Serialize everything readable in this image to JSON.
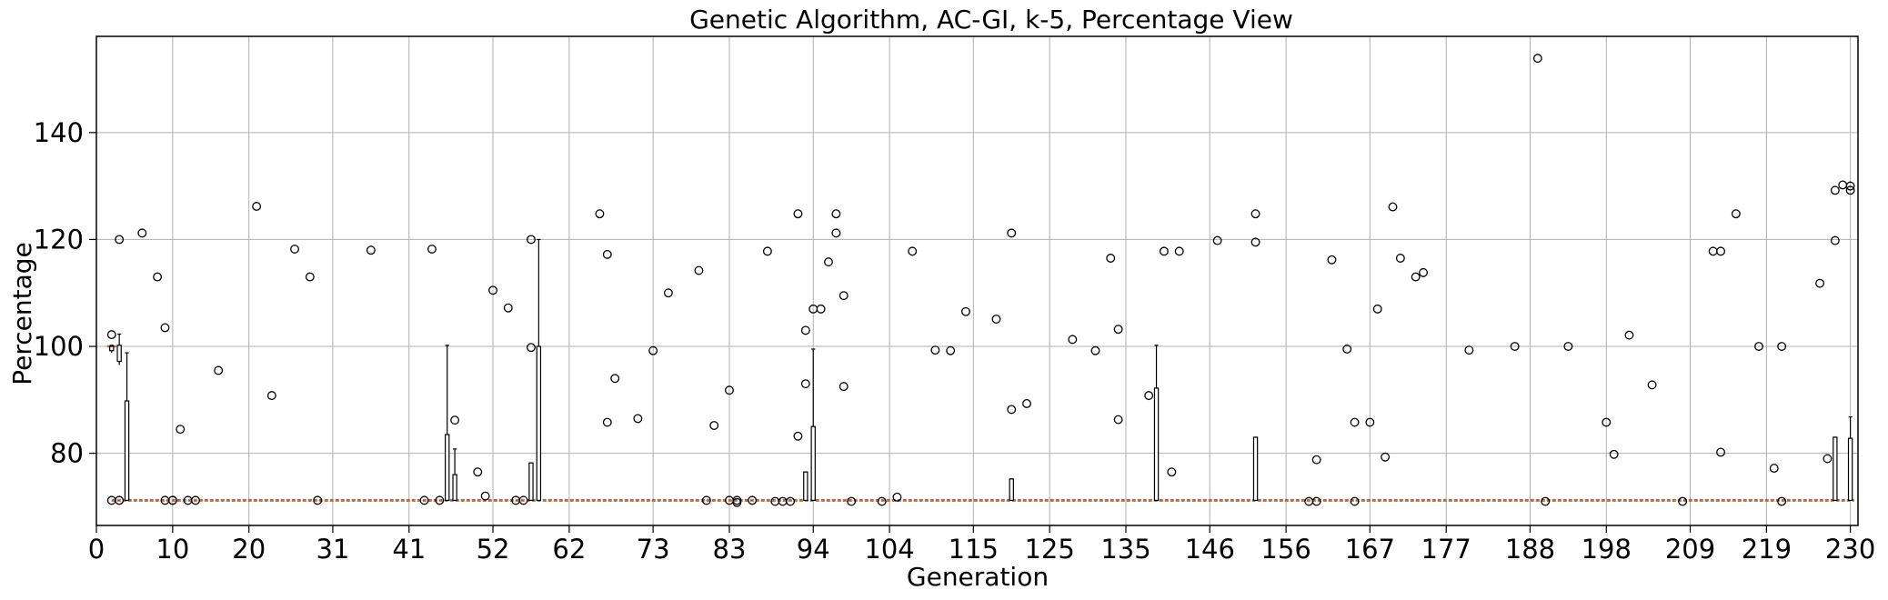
{
  "chart_data": {
    "type": "box",
    "title": "Genetic Algorithm, AC-GI, k-5, Percentage View",
    "xlabel": "Generation",
    "ylabel": "Percentage",
    "xlim": [
      0,
      231
    ],
    "ylim": [
      66.5,
      158
    ],
    "x_ticks": [
      0,
      10,
      20,
      31,
      41,
      52,
      62,
      73,
      83,
      94,
      104,
      115,
      125,
      135,
      146,
      156,
      167,
      177,
      188,
      198,
      209,
      219,
      230
    ],
    "y_ticks": [
      80,
      100,
      120,
      140
    ],
    "grid": true,
    "median_color": "#c8662a",
    "median_level": 71.2,
    "boxes": [
      {
        "x": 2,
        "q1": 99.2,
        "q3": 100,
        "whisker_low": 98.8,
        "whisker_high": 100.2
      },
      {
        "x": 3,
        "q1": 97.2,
        "q3": 100.2,
        "whisker_low": 96.5,
        "whisker_high": 102.3
      },
      {
        "x": 4,
        "q1": 71.2,
        "q3": 89.8,
        "whisker_low": 71.2,
        "whisker_high": 98.8
      },
      {
        "x": 46,
        "q1": 71.2,
        "q3": 83.5,
        "whisker_low": 71.2,
        "whisker_high": 100.2
      },
      {
        "x": 47,
        "q1": 71.2,
        "q3": 76,
        "whisker_low": 71.2,
        "whisker_high": 80.8
      },
      {
        "x": 57,
        "q1": 71.2,
        "q3": 78.2,
        "whisker_low": 71.2,
        "whisker_high": 78.2
      },
      {
        "x": 58,
        "q1": 71.2,
        "q3": 100,
        "whisker_low": 71.2,
        "whisker_high": 120
      },
      {
        "x": 93,
        "q1": 71.2,
        "q3": 76.5,
        "whisker_low": 71.2,
        "whisker_high": 76.5
      },
      {
        "x": 94,
        "q1": 71.2,
        "q3": 85,
        "whisker_low": 71.2,
        "whisker_high": 99.5
      },
      {
        "x": 120,
        "q1": 71.2,
        "q3": 75.2,
        "whisker_low": 71.2,
        "whisker_high": 75.2
      },
      {
        "x": 139,
        "q1": 71.2,
        "q3": 92.2,
        "whisker_low": 71.2,
        "whisker_high": 100.2
      },
      {
        "x": 152,
        "q1": 71.2,
        "q3": 83,
        "whisker_low": 71.2,
        "whisker_high": 83
      },
      {
        "x": 228,
        "q1": 71.2,
        "q3": 83,
        "whisker_low": 71.2,
        "whisker_high": 83
      },
      {
        "x": 230,
        "q1": 71.2,
        "q3": 82.8,
        "whisker_low": 71.2,
        "whisker_high": 86.8
      }
    ],
    "outliers": [
      [
        2,
        102.2
      ],
      [
        2,
        71.2
      ],
      [
        3,
        120
      ],
      [
        3,
        71.2
      ],
      [
        6,
        121.2
      ],
      [
        8,
        113
      ],
      [
        9,
        103.5
      ],
      [
        9,
        71.2
      ],
      [
        10,
        71.2
      ],
      [
        10,
        71.2
      ],
      [
        11,
        84.5
      ],
      [
        12,
        71.2
      ],
      [
        13,
        71.2
      ],
      [
        16,
        95.5
      ],
      [
        21,
        126.2
      ],
      [
        23,
        90.8
      ],
      [
        26,
        118.2
      ],
      [
        28,
        113
      ],
      [
        29,
        71.2
      ],
      [
        36,
        118
      ],
      [
        43,
        71.2
      ],
      [
        44,
        118.2
      ],
      [
        45,
        71.2
      ],
      [
        47,
        86.2
      ],
      [
        50,
        76.5
      ],
      [
        51,
        72
      ],
      [
        52,
        110.5
      ],
      [
        54,
        107.2
      ],
      [
        55,
        71.2
      ],
      [
        56,
        71.2
      ],
      [
        57,
        120
      ],
      [
        57,
        99.8
      ],
      [
        66,
        124.8
      ],
      [
        67,
        117.2
      ],
      [
        67,
        85.8
      ],
      [
        68,
        94
      ],
      [
        71,
        86.5
      ],
      [
        73,
        99.2
      ],
      [
        75,
        110
      ],
      [
        79,
        114.2
      ],
      [
        81,
        85.2
      ],
      [
        80,
        71.2
      ],
      [
        83,
        91.8
      ],
      [
        83,
        71.2
      ],
      [
        84,
        70.8
      ],
      [
        84,
        71.2
      ],
      [
        86,
        71.2
      ],
      [
        88,
        117.8
      ],
      [
        89,
        71
      ],
      [
        90,
        71
      ],
      [
        91,
        71
      ],
      [
        92,
        124.8
      ],
      [
        92,
        83.2
      ],
      [
        93,
        103
      ],
      [
        93,
        93
      ],
      [
        94,
        107
      ],
      [
        95,
        107
      ],
      [
        96,
        115.8
      ],
      [
        97,
        124.8
      ],
      [
        97,
        121.2
      ],
      [
        98,
        109.5
      ],
      [
        98,
        92.5
      ],
      [
        99,
        71
      ],
      [
        103,
        71
      ],
      [
        105,
        71.8
      ],
      [
        107,
        117.8
      ],
      [
        110,
        99.3
      ],
      [
        112,
        99.2
      ],
      [
        114,
        106.5
      ],
      [
        118,
        105.1
      ],
      [
        120,
        121.2
      ],
      [
        120,
        88.2
      ],
      [
        122,
        89.3
      ],
      [
        128,
        101.3
      ],
      [
        131,
        99.2
      ],
      [
        133,
        116.5
      ],
      [
        134,
        103.2
      ],
      [
        134,
        86.3
      ],
      [
        138,
        90.8
      ],
      [
        140,
        117.8
      ],
      [
        141,
        76.5
      ],
      [
        142,
        117.8
      ],
      [
        147,
        119.8
      ],
      [
        152,
        124.8
      ],
      [
        152,
        119.5
      ],
      [
        159,
        71
      ],
      [
        160,
        71
      ],
      [
        160,
        78.8
      ],
      [
        162,
        116.2
      ],
      [
        164,
        99.5
      ],
      [
        165,
        85.8
      ],
      [
        165,
        71
      ],
      [
        167,
        85.8
      ],
      [
        168,
        107
      ],
      [
        169,
        79.3
      ],
      [
        170,
        126.1
      ],
      [
        171,
        116.5
      ],
      [
        173,
        113
      ],
      [
        174,
        113.8
      ],
      [
        180,
        99.3
      ],
      [
        186,
        100
      ],
      [
        189,
        153.9
      ],
      [
        190,
        71
      ],
      [
        193,
        100
      ],
      [
        198,
        85.8
      ],
      [
        199,
        79.8
      ],
      [
        201,
        102.1
      ],
      [
        204,
        92.8
      ],
      [
        208,
        71
      ],
      [
        212,
        117.8
      ],
      [
        213,
        117.8
      ],
      [
        213,
        80.2
      ],
      [
        215,
        124.8
      ],
      [
        218,
        100
      ],
      [
        220,
        77.2
      ],
      [
        221,
        100
      ],
      [
        221,
        71
      ],
      [
        226,
        111.8
      ],
      [
        227,
        79
      ],
      [
        228,
        129.2
      ],
      [
        228,
        119.8
      ],
      [
        229,
        130.2
      ],
      [
        230,
        130
      ],
      [
        230,
        129.2
      ]
    ]
  }
}
